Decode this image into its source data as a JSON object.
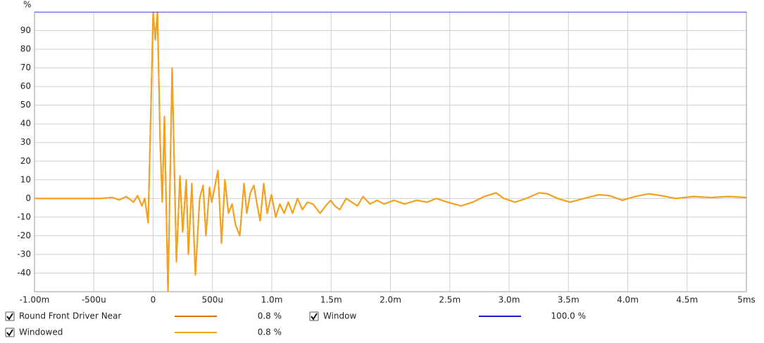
{
  "chart_data": {
    "type": "line",
    "ylabel": "%",
    "x": [
      -1.0,
      -0.451,
      -0.344,
      -0.285,
      -0.226,
      -0.166,
      -0.131,
      -0.095,
      -0.071,
      -0.042,
      -0.018,
      0.0,
      0.018,
      0.036,
      0.059,
      0.077,
      0.095,
      0.125,
      0.16,
      0.196,
      0.226,
      0.249,
      0.279,
      0.297,
      0.326,
      0.356,
      0.392,
      0.421,
      0.445,
      0.475,
      0.493,
      0.516,
      0.546,
      0.576,
      0.605,
      0.635,
      0.665,
      0.694,
      0.73,
      0.766,
      0.789,
      0.819,
      0.849,
      0.878,
      0.902,
      0.932,
      0.961,
      0.997,
      1.033,
      1.068,
      1.104,
      1.139,
      1.175,
      1.217,
      1.258,
      1.3,
      1.347,
      1.407,
      1.454,
      1.496,
      1.531,
      1.573,
      1.626,
      1.674,
      1.721,
      1.769,
      1.828,
      1.887,
      1.947,
      2.03,
      2.119,
      2.22,
      2.309,
      2.386,
      2.481,
      2.594,
      2.694,
      2.789,
      2.89,
      2.955,
      3.05,
      3.145,
      3.252,
      3.323,
      3.407,
      3.513,
      3.632,
      3.757,
      3.846,
      3.953,
      4.059,
      4.178,
      4.285,
      4.404,
      4.552,
      4.7,
      4.849,
      5.0
    ],
    "series": [
      {
        "name": "Round Front Driver Near",
        "color": "#e07010",
        "readout": "0.8 %",
        "values": [
          0,
          0,
          0.5,
          -0.8,
          1,
          -2,
          1.5,
          -4,
          0,
          -13,
          50,
          100,
          85,
          100,
          30,
          -2,
          44,
          -50,
          70,
          -34,
          12,
          -18,
          10,
          -30,
          8,
          -41,
          0,
          7,
          -20,
          6,
          -2,
          5,
          15,
          -24,
          10,
          -8,
          -3,
          -14,
          -20,
          8,
          -8,
          3,
          7,
          -4,
          -12,
          8,
          -8,
          2,
          -10,
          -3,
          -8,
          -2,
          -8,
          0,
          -6,
          -2,
          -3,
          -8,
          -4,
          -1,
          -4,
          -6,
          0,
          -2,
          -4,
          1,
          -3,
          -1,
          -3,
          -1,
          -3,
          -1,
          -2,
          0,
          -2,
          -4,
          -2,
          1,
          3,
          0,
          -2,
          0,
          3,
          2.5,
          0,
          -2,
          0,
          2,
          1.5,
          -1,
          1,
          2.5,
          1.5,
          0,
          1,
          0.5,
          1,
          0.5
        ]
      },
      {
        "name": "Windowed",
        "color": "#f5a31a",
        "readout": "0.8 %",
        "values": [
          0,
          0,
          0.5,
          -0.8,
          1,
          -2,
          1.5,
          -4,
          0,
          -13,
          50,
          100,
          85,
          100,
          30,
          -2,
          44,
          -50,
          70,
          -34,
          12,
          -18,
          10,
          -30,
          8,
          -41,
          0,
          7,
          -20,
          6,
          -2,
          5,
          15,
          -24,
          10,
          -8,
          -3,
          -14,
          -20,
          8,
          -8,
          3,
          7,
          -4,
          -12,
          8,
          -8,
          2,
          -10,
          -3,
          -8,
          -2,
          -8,
          0,
          -6,
          -2,
          -3,
          -8,
          -4,
          -1,
          -4,
          -6,
          0,
          -2,
          -4,
          1,
          -3,
          -1,
          -3,
          -1,
          -3,
          -1,
          -2,
          0,
          -2,
          -4,
          -2,
          1,
          3,
          0,
          -2,
          0,
          3,
          2.5,
          0,
          -2,
          0,
          2,
          1.5,
          -1,
          1,
          2.5,
          1.5,
          0,
          1,
          0.5,
          1,
          0.5
        ]
      },
      {
        "name": "Window",
        "color": "#1a1acc",
        "readout": "100.0 %",
        "x": [
          -1.0,
          5.0
        ],
        "values": [
          100,
          100
        ]
      }
    ],
    "xlim": [
      -1.0,
      5.0
    ],
    "xticks": [
      {
        "value": -1.0,
        "label": "-1.00m"
      },
      {
        "value": -0.5,
        "label": "-500u"
      },
      0,
      {
        "value": 0.5,
        "label": "500u"
      },
      {
        "value": 1.0,
        "label": "1.0m"
      },
      {
        "value": 1.5,
        "label": "1.5m"
      },
      {
        "value": 2.0,
        "label": "2.0m"
      },
      {
        "value": 2.5,
        "label": "2.5m"
      },
      {
        "value": 3.0,
        "label": "3.0m"
      },
      {
        "value": 3.5,
        "label": "3.5m"
      },
      {
        "value": 4.0,
        "label": "4.0m"
      },
      {
        "value": 4.5,
        "label": "4.5m"
      },
      {
        "value": 5.0,
        "label": "5ms"
      }
    ],
    "ylim": [
      -50,
      100
    ],
    "yticks": [
      -40,
      -30,
      -20,
      -10,
      0,
      10,
      20,
      30,
      40,
      50,
      60,
      70,
      80,
      90
    ],
    "grid": true
  }
}
